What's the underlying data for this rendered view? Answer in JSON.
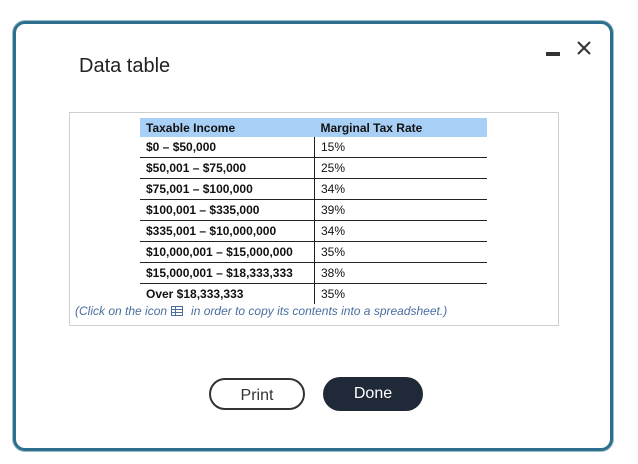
{
  "dialog": {
    "title": "Data table",
    "minimize_icon": "minimize-icon",
    "close_icon": "close-icon"
  },
  "table": {
    "headers": [
      "Taxable Income",
      "Marginal Tax Rate"
    ],
    "rows": [
      [
        "$0 – $50,000",
        "15%"
      ],
      [
        "$50,001 – $75,000",
        "25%"
      ],
      [
        "$75,001 – $100,000",
        "34%"
      ],
      [
        "$100,001 – $335,000",
        "39%"
      ],
      [
        "$335,001 – $10,000,000",
        "34%"
      ],
      [
        "$10,000,001 – $15,000,000",
        "35%"
      ],
      [
        "$15,000,001 – $18,333,333",
        "38%"
      ],
      [
        "Over $18,333,333",
        "35%"
      ]
    ]
  },
  "note": {
    "before": "(Click on the icon",
    "icon": "spreadsheet-icon",
    "after": "in order to copy its contents into a spreadsheet.)"
  },
  "buttons": {
    "print": "Print",
    "done": "Done"
  },
  "colors": {
    "border": "#2d6f8c",
    "header_bg": "#a8cff5",
    "note_text": "#4a6ea0",
    "done_bg": "#1f2937"
  }
}
